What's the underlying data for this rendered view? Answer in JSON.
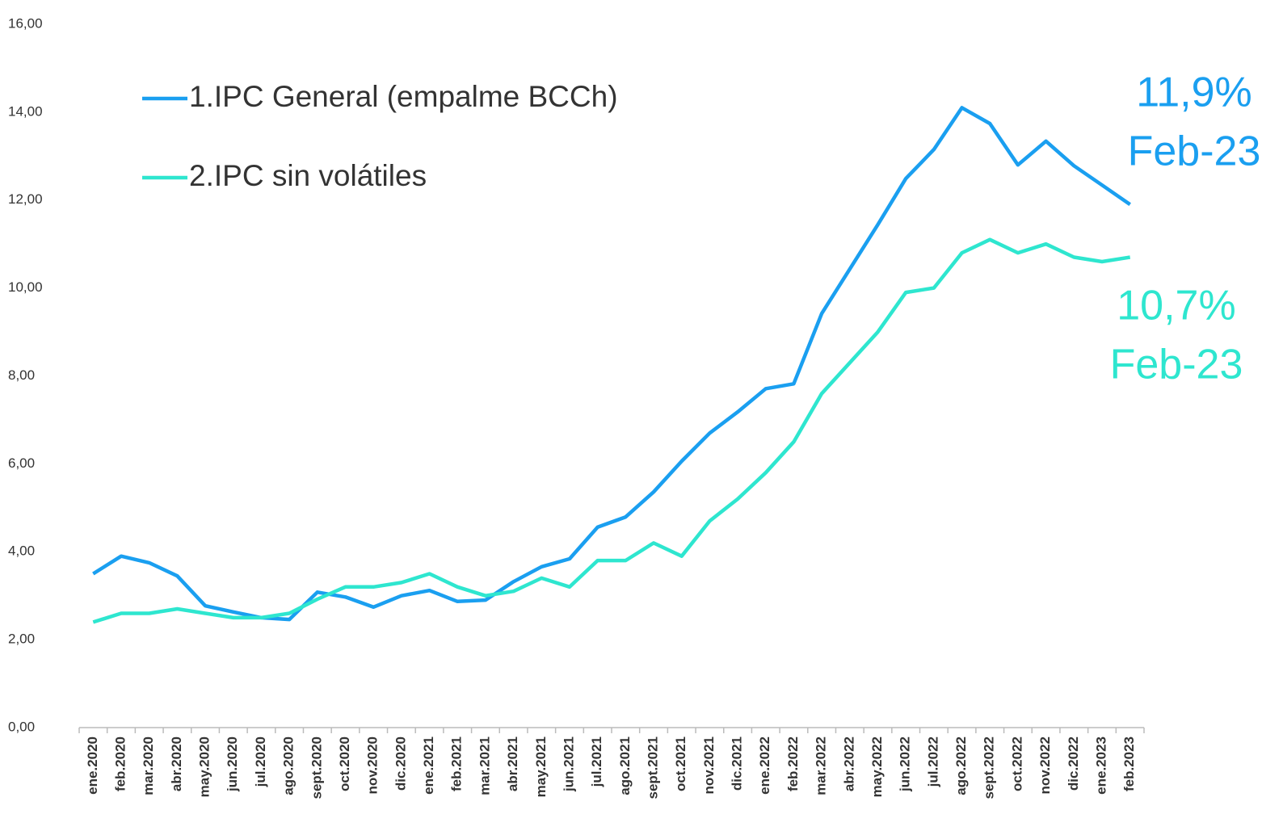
{
  "chart_data": {
    "type": "line",
    "categories": [
      "ene.2020",
      "feb.2020",
      "mar.2020",
      "abr.2020",
      "may.2020",
      "jun.2020",
      "jul.2020",
      "ago.2020",
      "sept.2020",
      "oct.2020",
      "nov.2020",
      "dic.2020",
      "ene.2021",
      "feb.2021",
      "mar.2021",
      "abr.2021",
      "may.2021",
      "jun.2021",
      "jul.2021",
      "ago.2021",
      "sept.2021",
      "oct.2021",
      "nov.2021",
      "dic.2021",
      "ene.2022",
      "feb.2022",
      "mar.2022",
      "abr.2022",
      "may.2022",
      "jun.2022",
      "jul.2022",
      "ago.2022",
      "sept.2022",
      "oct.2022",
      "nov.2022",
      "dic.2022",
      "ene.2023",
      "feb.2023"
    ],
    "series": [
      {
        "name": "1.IPC General (empalme BCCh)",
        "color": "#1a9ff0",
        "values": [
          3.5,
          3.9,
          3.75,
          3.45,
          2.77,
          2.63,
          2.5,
          2.46,
          3.08,
          2.97,
          2.74,
          3.0,
          3.12,
          2.87,
          2.9,
          3.32,
          3.66,
          3.84,
          4.56,
          4.79,
          5.36,
          6.06,
          6.7,
          7.18,
          7.71,
          7.82,
          9.42,
          10.43,
          11.44,
          12.49,
          13.15,
          14.1,
          13.74,
          12.8,
          13.34,
          12.78,
          12.34,
          11.9
        ]
      },
      {
        "name": "2.IPC sin volátiles",
        "color": "#2ee6cf",
        "values": [
          2.4,
          2.6,
          2.6,
          2.7,
          2.6,
          2.5,
          2.5,
          2.6,
          2.92,
          3.2,
          3.2,
          3.3,
          3.5,
          3.2,
          3.0,
          3.1,
          3.4,
          3.2,
          3.8,
          3.8,
          4.2,
          3.9,
          4.7,
          5.2,
          5.8,
          6.5,
          7.6,
          8.3,
          9.0,
          9.9,
          10.0,
          10.8,
          11.1,
          10.8,
          11.0,
          10.7,
          10.6,
          10.7
        ]
      }
    ],
    "annotations": [
      {
        "lines": [
          "11,9%",
          "Feb-23"
        ],
        "color": "#1a9ff0"
      },
      {
        "lines": [
          "10,7%",
          "Feb-23"
        ],
        "color": "#2ee6cf"
      }
    ],
    "ylim": [
      0,
      16
    ],
    "yticks": [
      {
        "value": 0,
        "label": "0,00"
      },
      {
        "value": 2,
        "label": "2,00"
      },
      {
        "value": 4,
        "label": "4,00"
      },
      {
        "value": 6,
        "label": "6,00"
      },
      {
        "value": 8,
        "label": "8,00"
      },
      {
        "value": 10,
        "label": "10,00"
      },
      {
        "value": 12,
        "label": "12,00"
      },
      {
        "value": 14,
        "label": "14,00"
      },
      {
        "value": 16,
        "label": "16,00"
      }
    ],
    "grid": false,
    "legend": "top-left"
  }
}
